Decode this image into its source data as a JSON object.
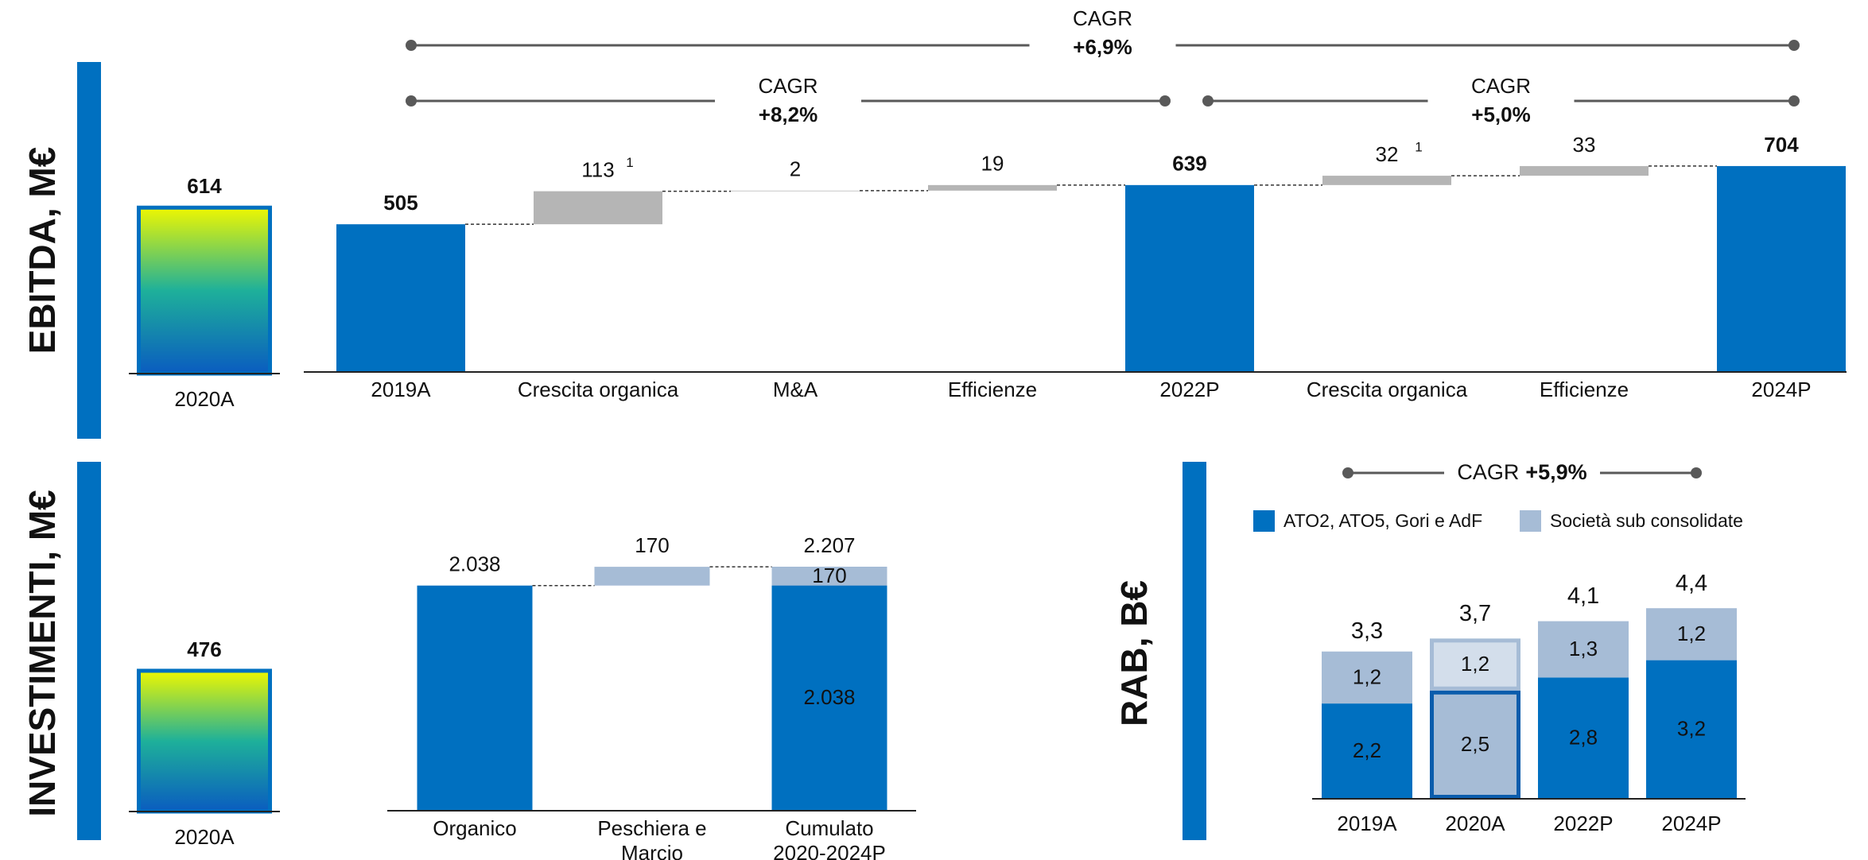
{
  "chart_data": [
    {
      "type": "bar",
      "categories": [
        "2020A"
      ],
      "values": [
        614
      ],
      "gradient": [
        "#eef700",
        "#1eb09a",
        "#0a5cc0"
      ],
      "border": "#0070c0"
    },
    {
      "type": "waterfall",
      "title": "EBITDA, M€",
      "categories": [
        "2019A",
        "Crescita organica",
        "M&A",
        "Efficienze",
        "2022P",
        "Crescita organica",
        "Efficienze",
        "2024P"
      ],
      "values": [
        505,
        113,
        2,
        19,
        639,
        32,
        33,
        704
      ],
      "measures": [
        "total",
        "relative",
        "relative",
        "relative",
        "total",
        "relative",
        "relative",
        "total"
      ],
      "colors": {
        "total": "#0070c0",
        "relative": "#b5b5b5"
      },
      "footnote": {
        "category": "Crescita organica",
        "label": "1"
      },
      "cagr": [
        {
          "from": "2019A",
          "to": "2024P",
          "label": "CAGR",
          "value": "+6,9%"
        },
        {
          "from": "2019A",
          "to": "2022P",
          "label": "CAGR",
          "value": "+8,2%"
        },
        {
          "from": "2022P",
          "to": "2024P",
          "label": "CAGR",
          "value": "+5,0%"
        }
      ]
    },
    {
      "type": "bar",
      "categories": [
        "2020A"
      ],
      "values": [
        476
      ],
      "gradient": [
        "#eef700",
        "#1eb09a",
        "#0a5cc0"
      ],
      "border": "#0070c0"
    },
    {
      "type": "waterfall",
      "title": "INVESTIMENTI, M€",
      "categories": [
        "Organico",
        "Peschiera e Marcio",
        "Cumulato 2020-2024P"
      ],
      "values": [
        2038,
        170,
        2207
      ],
      "value_labels": [
        "2.038",
        "170",
        "2.207"
      ],
      "measures": [
        "total",
        "relative",
        "total"
      ],
      "colors": {
        "total": "#0070c0",
        "relative": "#a6bcd6"
      },
      "breakdown": {
        "category": "Cumulato 2020-2024P",
        "values": [
          2038,
          170
        ],
        "value_labels": [
          "2.038",
          "170"
        ],
        "colors": [
          "#0070c0",
          "#a6bcd6"
        ]
      }
    },
    {
      "type": "stacked_bar",
      "title": "RAB, B€",
      "categories": [
        "2019A",
        "2020A",
        "2022P",
        "2024P"
      ],
      "series": [
        {
          "name": "ATO2, ATO5, Gori e AdF",
          "color": "#0070c0",
          "values": [
            2.2,
            2.5,
            2.8,
            3.2
          ],
          "value_labels": [
            "2,2",
            "2,5",
            "2,8",
            "3,2"
          ]
        },
        {
          "name": "Società sub consolidate",
          "color": "#a6bcd6",
          "values": [
            1.2,
            1.2,
            1.3,
            1.2
          ],
          "value_labels": [
            "1,2",
            "1,2",
            "1,3",
            "1,2"
          ]
        }
      ],
      "totals": [
        3.3,
        3.7,
        4.1,
        4.4
      ],
      "total_labels": [
        "3,3",
        "3,7",
        "4,1",
        "4,4"
      ],
      "highlight": "2020A",
      "highlight_style": {
        "fills": [
          "#a6bcd6",
          "#d3deeb"
        ],
        "strokes": [
          "#0a5cac",
          "#a6bcd6"
        ]
      },
      "legend": "top",
      "cagr": [
        {
          "from": "2019A",
          "to": "2024P",
          "label": "CAGR",
          "value": "+5,9%"
        }
      ]
    }
  ]
}
